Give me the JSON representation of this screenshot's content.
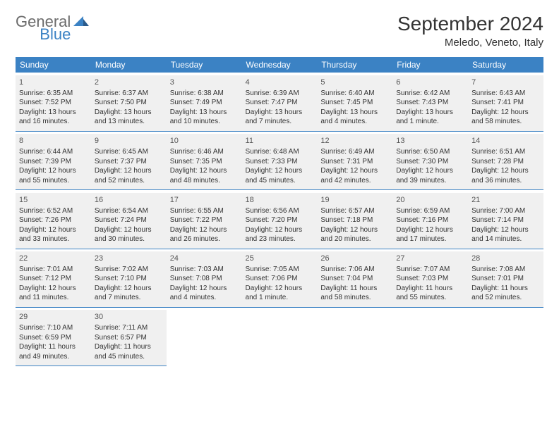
{
  "logo": {
    "gray": "General",
    "blue": "Blue"
  },
  "title": "September 2024",
  "location": "Meledo, Veneto, Italy",
  "colors": {
    "header_bg": "#3b82c4",
    "header_text": "#ffffff",
    "cell_bg": "#f0f0f0",
    "cell_border": "#3b82c4",
    "text": "#333333",
    "logo_gray": "#6b6b6b",
    "logo_blue": "#3b82c4"
  },
  "typography": {
    "month_title_fontsize": 28,
    "location_fontsize": 15,
    "day_header_fontsize": 12,
    "cell_fontsize": 10,
    "logo_fontsize": 22
  },
  "day_names": [
    "Sunday",
    "Monday",
    "Tuesday",
    "Wednesday",
    "Thursday",
    "Friday",
    "Saturday"
  ],
  "weeks": [
    [
      {
        "n": "1",
        "sr": "Sunrise: 6:35 AM",
        "ss": "Sunset: 7:52 PM",
        "d1": "Daylight: 13 hours",
        "d2": "and 16 minutes."
      },
      {
        "n": "2",
        "sr": "Sunrise: 6:37 AM",
        "ss": "Sunset: 7:50 PM",
        "d1": "Daylight: 13 hours",
        "d2": "and 13 minutes."
      },
      {
        "n": "3",
        "sr": "Sunrise: 6:38 AM",
        "ss": "Sunset: 7:49 PM",
        "d1": "Daylight: 13 hours",
        "d2": "and 10 minutes."
      },
      {
        "n": "4",
        "sr": "Sunrise: 6:39 AM",
        "ss": "Sunset: 7:47 PM",
        "d1": "Daylight: 13 hours",
        "d2": "and 7 minutes."
      },
      {
        "n": "5",
        "sr": "Sunrise: 6:40 AM",
        "ss": "Sunset: 7:45 PM",
        "d1": "Daylight: 13 hours",
        "d2": "and 4 minutes."
      },
      {
        "n": "6",
        "sr": "Sunrise: 6:42 AM",
        "ss": "Sunset: 7:43 PM",
        "d1": "Daylight: 13 hours",
        "d2": "and 1 minute."
      },
      {
        "n": "7",
        "sr": "Sunrise: 6:43 AM",
        "ss": "Sunset: 7:41 PM",
        "d1": "Daylight: 12 hours",
        "d2": "and 58 minutes."
      }
    ],
    [
      {
        "n": "8",
        "sr": "Sunrise: 6:44 AM",
        "ss": "Sunset: 7:39 PM",
        "d1": "Daylight: 12 hours",
        "d2": "and 55 minutes."
      },
      {
        "n": "9",
        "sr": "Sunrise: 6:45 AM",
        "ss": "Sunset: 7:37 PM",
        "d1": "Daylight: 12 hours",
        "d2": "and 52 minutes."
      },
      {
        "n": "10",
        "sr": "Sunrise: 6:46 AM",
        "ss": "Sunset: 7:35 PM",
        "d1": "Daylight: 12 hours",
        "d2": "and 48 minutes."
      },
      {
        "n": "11",
        "sr": "Sunrise: 6:48 AM",
        "ss": "Sunset: 7:33 PM",
        "d1": "Daylight: 12 hours",
        "d2": "and 45 minutes."
      },
      {
        "n": "12",
        "sr": "Sunrise: 6:49 AM",
        "ss": "Sunset: 7:31 PM",
        "d1": "Daylight: 12 hours",
        "d2": "and 42 minutes."
      },
      {
        "n": "13",
        "sr": "Sunrise: 6:50 AM",
        "ss": "Sunset: 7:30 PM",
        "d1": "Daylight: 12 hours",
        "d2": "and 39 minutes."
      },
      {
        "n": "14",
        "sr": "Sunrise: 6:51 AM",
        "ss": "Sunset: 7:28 PM",
        "d1": "Daylight: 12 hours",
        "d2": "and 36 minutes."
      }
    ],
    [
      {
        "n": "15",
        "sr": "Sunrise: 6:52 AM",
        "ss": "Sunset: 7:26 PM",
        "d1": "Daylight: 12 hours",
        "d2": "and 33 minutes."
      },
      {
        "n": "16",
        "sr": "Sunrise: 6:54 AM",
        "ss": "Sunset: 7:24 PM",
        "d1": "Daylight: 12 hours",
        "d2": "and 30 minutes."
      },
      {
        "n": "17",
        "sr": "Sunrise: 6:55 AM",
        "ss": "Sunset: 7:22 PM",
        "d1": "Daylight: 12 hours",
        "d2": "and 26 minutes."
      },
      {
        "n": "18",
        "sr": "Sunrise: 6:56 AM",
        "ss": "Sunset: 7:20 PM",
        "d1": "Daylight: 12 hours",
        "d2": "and 23 minutes."
      },
      {
        "n": "19",
        "sr": "Sunrise: 6:57 AM",
        "ss": "Sunset: 7:18 PM",
        "d1": "Daylight: 12 hours",
        "d2": "and 20 minutes."
      },
      {
        "n": "20",
        "sr": "Sunrise: 6:59 AM",
        "ss": "Sunset: 7:16 PM",
        "d1": "Daylight: 12 hours",
        "d2": "and 17 minutes."
      },
      {
        "n": "21",
        "sr": "Sunrise: 7:00 AM",
        "ss": "Sunset: 7:14 PM",
        "d1": "Daylight: 12 hours",
        "d2": "and 14 minutes."
      }
    ],
    [
      {
        "n": "22",
        "sr": "Sunrise: 7:01 AM",
        "ss": "Sunset: 7:12 PM",
        "d1": "Daylight: 12 hours",
        "d2": "and 11 minutes."
      },
      {
        "n": "23",
        "sr": "Sunrise: 7:02 AM",
        "ss": "Sunset: 7:10 PM",
        "d1": "Daylight: 12 hours",
        "d2": "and 7 minutes."
      },
      {
        "n": "24",
        "sr": "Sunrise: 7:03 AM",
        "ss": "Sunset: 7:08 PM",
        "d1": "Daylight: 12 hours",
        "d2": "and 4 minutes."
      },
      {
        "n": "25",
        "sr": "Sunrise: 7:05 AM",
        "ss": "Sunset: 7:06 PM",
        "d1": "Daylight: 12 hours",
        "d2": "and 1 minute."
      },
      {
        "n": "26",
        "sr": "Sunrise: 7:06 AM",
        "ss": "Sunset: 7:04 PM",
        "d1": "Daylight: 11 hours",
        "d2": "and 58 minutes."
      },
      {
        "n": "27",
        "sr": "Sunrise: 7:07 AM",
        "ss": "Sunset: 7:03 PM",
        "d1": "Daylight: 11 hours",
        "d2": "and 55 minutes."
      },
      {
        "n": "28",
        "sr": "Sunrise: 7:08 AM",
        "ss": "Sunset: 7:01 PM",
        "d1": "Daylight: 11 hours",
        "d2": "and 52 minutes."
      }
    ],
    [
      {
        "n": "29",
        "sr": "Sunrise: 7:10 AM",
        "ss": "Sunset: 6:59 PM",
        "d1": "Daylight: 11 hours",
        "d2": "and 49 minutes."
      },
      {
        "n": "30",
        "sr": "Sunrise: 7:11 AM",
        "ss": "Sunset: 6:57 PM",
        "d1": "Daylight: 11 hours",
        "d2": "and 45 minutes."
      },
      null,
      null,
      null,
      null,
      null
    ]
  ]
}
